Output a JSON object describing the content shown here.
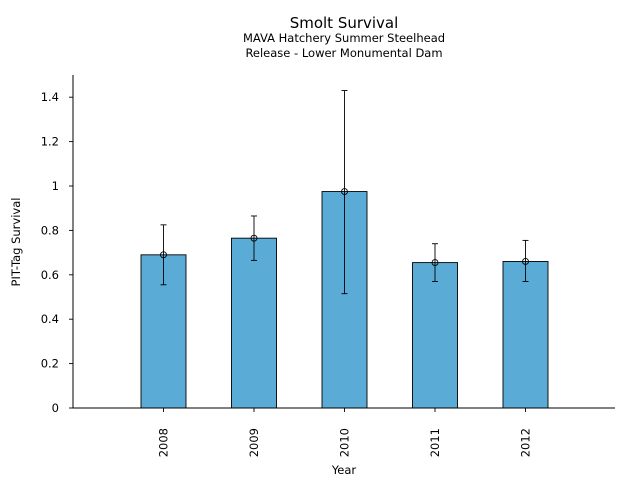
{
  "chart_data": {
    "type": "bar",
    "title": "Smolt Survival",
    "subtitle_lines": [
      "MAVA Hatchery Summer Steelhead",
      "Release - Lower Monumental Dam"
    ],
    "xlabel": "Year",
    "ylabel": "PIT-Tag Survival",
    "categories": [
      "2008",
      "2009",
      "2010",
      "2011",
      "2012"
    ],
    "values": [
      0.69,
      0.765,
      0.975,
      0.655,
      0.66
    ],
    "error_low": [
      0.555,
      0.665,
      0.515,
      0.57,
      0.57
    ],
    "error_high": [
      0.825,
      0.865,
      1.43,
      0.74,
      0.755
    ],
    "ylim": [
      0,
      1.5
    ],
    "yticks": [
      0,
      0.2,
      0.4,
      0.6,
      0.8,
      1,
      1.2,
      1.4
    ],
    "ytick_labels": [
      "0",
      "0.2",
      "0.4",
      "0.6",
      "0.8",
      "1",
      "1.2",
      "1.4"
    ],
    "bar_color": "#5aabd6",
    "grid": false
  }
}
